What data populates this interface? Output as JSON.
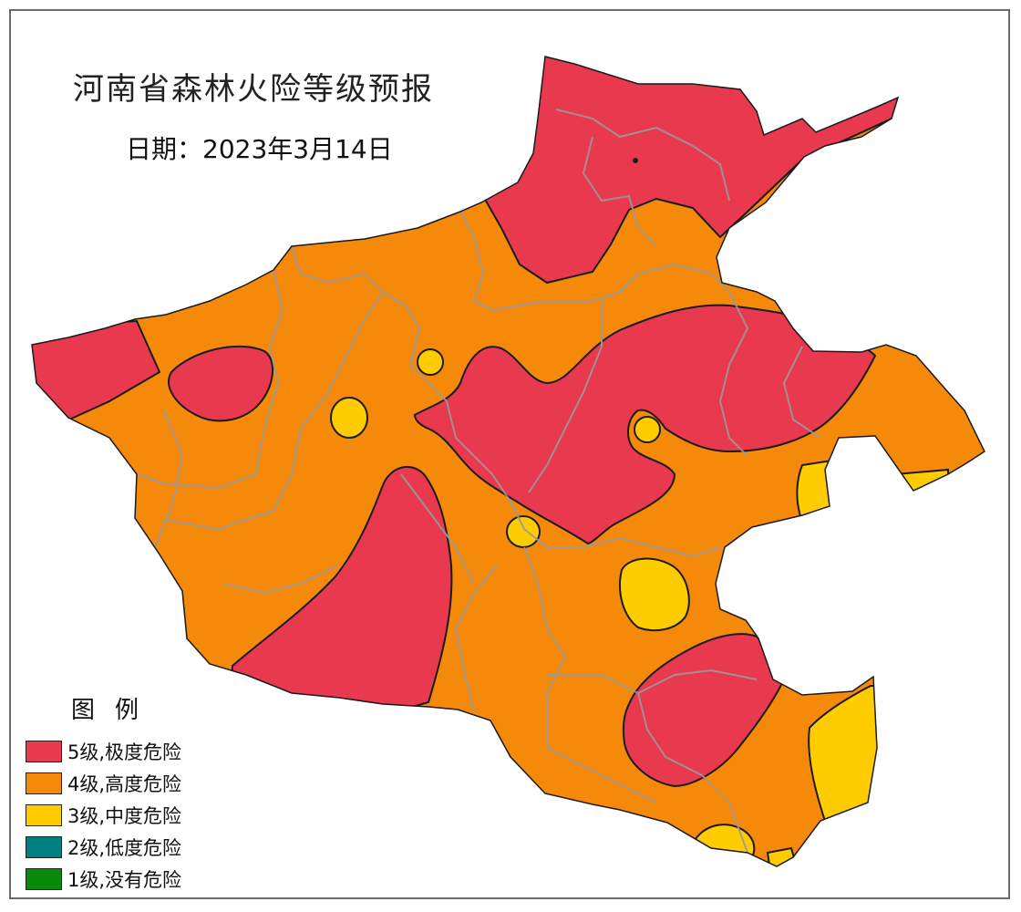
{
  "map": {
    "title": "河南省森林火险等级预报",
    "date": "日期：2023年3月14日"
  },
  "legend": {
    "title": "图例",
    "items": [
      {
        "label": "5级,极度危险",
        "color": "#e8394f"
      },
      {
        "label": "4级,高度危险",
        "color": "#f58a0a"
      },
      {
        "label": "3级,中度危险",
        "color": "#ffcc00"
      },
      {
        "label": "2级,低度危险",
        "color": "#008080"
      },
      {
        "label": "1级,没有危险",
        "color": "#0a8a0a"
      }
    ]
  },
  "colors": {
    "level5": "#e8394f",
    "level4": "#f58a0a",
    "level3": "#ffcc00",
    "boundary": "#9a9a9a",
    "contour": "#1a1a1a"
  }
}
